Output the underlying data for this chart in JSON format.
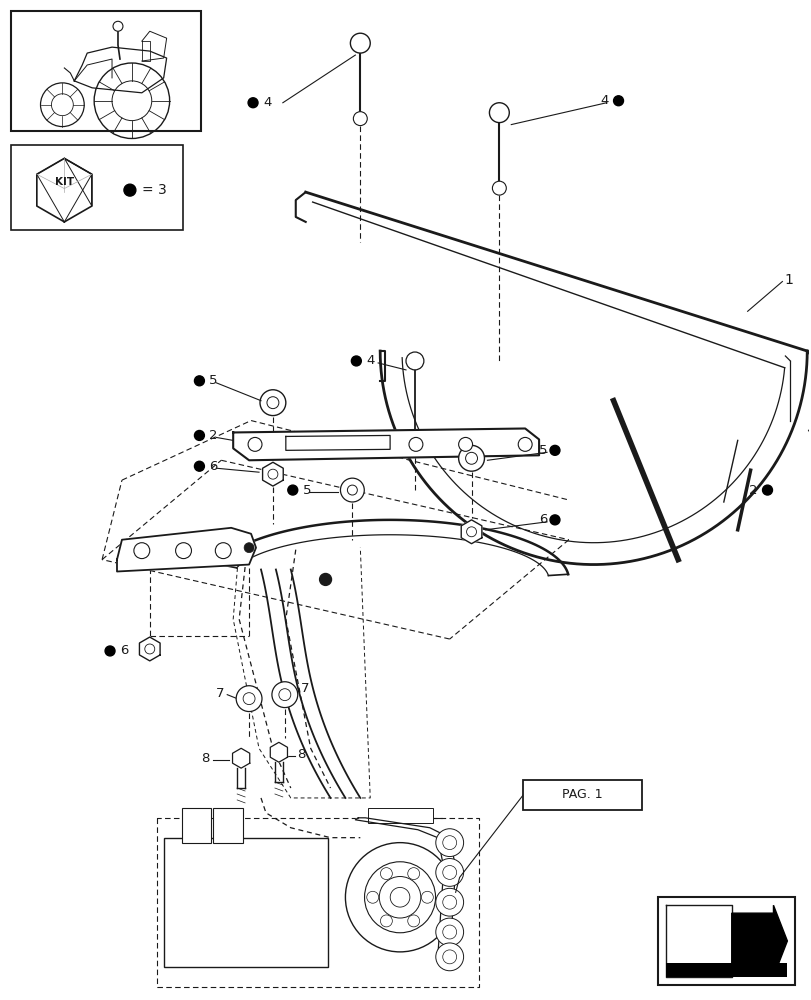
{
  "bg_color": "#ffffff",
  "line_color": "#1a1a1a",
  "fig_width": 8.12,
  "fig_height": 10.0,
  "dpi": 100
}
